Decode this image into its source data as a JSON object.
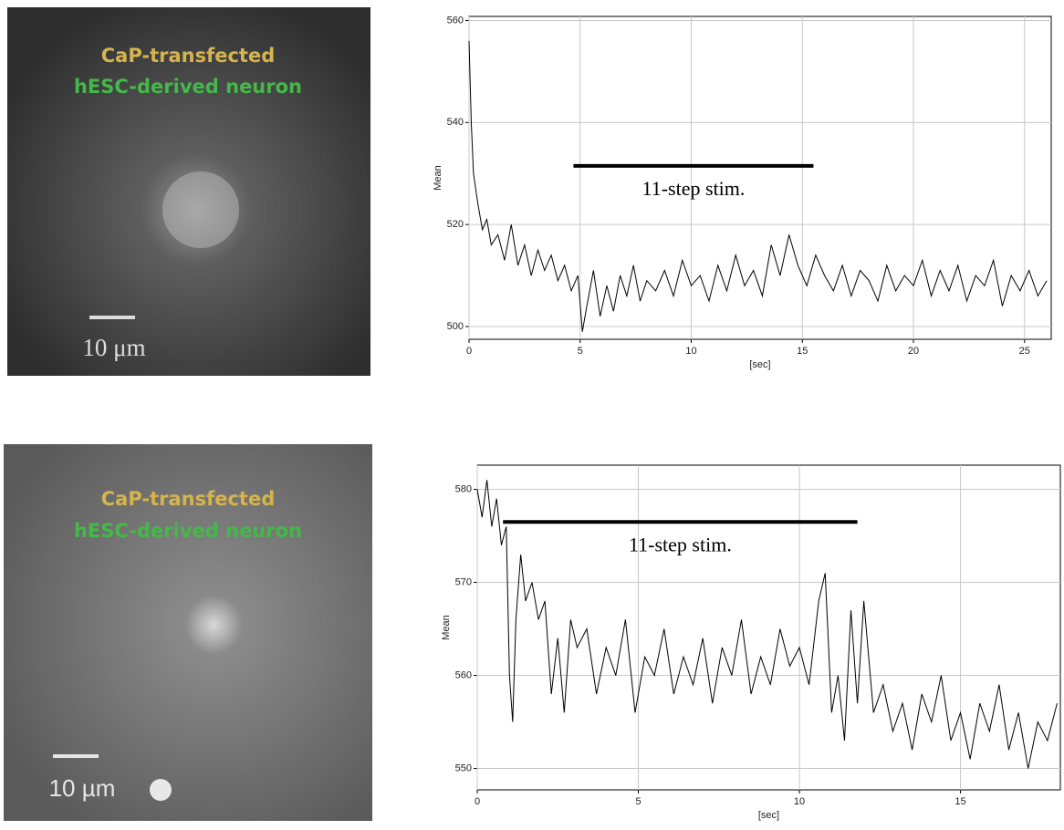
{
  "images": [
    {
      "title_lines": [
        "CaP-transfected",
        "hESC-derived neuron"
      ],
      "scale_bar": "10 μm"
    },
    {
      "title_lines": [
        "CaP-transfected",
        "hESC-derived neuron"
      ],
      "scale_bar": "10 µm"
    }
  ],
  "chart_data": [
    {
      "type": "line",
      "ylabel": "Mean",
      "xlabel": "[sec]",
      "x": [
        0,
        0.1,
        0.2,
        0.4,
        0.6,
        0.8,
        1,
        1.3,
        1.6,
        1.9,
        2.2,
        2.5,
        2.8,
        3.1,
        3.4,
        3.7,
        4,
        4.3,
        4.6,
        4.9,
        5.1,
        5.3,
        5.6,
        5.9,
        6.2,
        6.5,
        6.8,
        7.1,
        7.4,
        7.7,
        8,
        8.4,
        8.8,
        9.2,
        9.6,
        10,
        10.4,
        10.8,
        11.2,
        11.6,
        12,
        12.4,
        12.8,
        13.2,
        13.6,
        14,
        14.4,
        14.8,
        15.2,
        15.6,
        16,
        16.4,
        16.8,
        17.2,
        17.6,
        18,
        18.4,
        18.8,
        19.2,
        19.6,
        20,
        20.4,
        20.8,
        21.2,
        21.6,
        22,
        22.4,
        22.8,
        23.2,
        23.6,
        24,
        24.4,
        24.8,
        25.2,
        25.6,
        26
      ],
      "series": [
        {
          "color": "#000000",
          "values": [
            556,
            540,
            530,
            524,
            519,
            521,
            516,
            518,
            513,
            520,
            512,
            516,
            510,
            515,
            511,
            514,
            509,
            512,
            507,
            510,
            499,
            504,
            511,
            502,
            508,
            503,
            510,
            506,
            512,
            505,
            509,
            507,
            511,
            506,
            513,
            508,
            510,
            505,
            512,
            507,
            514,
            508,
            511,
            506,
            516,
            510,
            518,
            512,
            508,
            514,
            510,
            507,
            512,
            506,
            511,
            509,
            505,
            512,
            507,
            510,
            508,
            513,
            506,
            511,
            507,
            512,
            505,
            510,
            508,
            513,
            504,
            510,
            507,
            511,
            506,
            509
          ]
        }
      ],
      "xlim": [
        0,
        26.2
      ],
      "ylim": [
        497.5,
        560.8
      ],
      "xticks": [
        0,
        5,
        10,
        15,
        20,
        25
      ],
      "yticks": [
        500,
        520,
        540,
        560
      ],
      "grid": true,
      "annotation": {
        "text": "11-step stim.",
        "x": [
          4.7,
          15.5
        ],
        "y": 531.5
      }
    },
    {
      "type": "line",
      "ylabel": "Mean",
      "xlabel": "[sec]",
      "x": [
        0,
        0.15,
        0.3,
        0.45,
        0.6,
        0.75,
        0.9,
        1.0,
        1.1,
        1.2,
        1.35,
        1.5,
        1.7,
        1.9,
        2.1,
        2.3,
        2.5,
        2.7,
        2.9,
        3.1,
        3.4,
        3.7,
        4,
        4.3,
        4.6,
        4.9,
        5.2,
        5.5,
        5.8,
        6.1,
        6.4,
        6.7,
        7,
        7.3,
        7.6,
        7.9,
        8.2,
        8.5,
        8.8,
        9.1,
        9.4,
        9.7,
        10,
        10.3,
        10.6,
        10.8,
        11,
        11.2,
        11.4,
        11.6,
        11.8,
        12,
        12.3,
        12.6,
        12.9,
        13.2,
        13.5,
        13.8,
        14.1,
        14.4,
        14.7,
        15,
        15.3,
        15.6,
        15.9,
        16.2,
        16.5,
        16.8,
        17.1,
        17.4,
        17.7,
        18
      ],
      "series": [
        {
          "color": "#000000",
          "values": [
            580,
            577,
            581,
            576,
            579,
            574,
            576,
            560,
            555,
            566,
            573,
            568,
            570,
            566,
            568,
            558,
            564,
            556,
            566,
            563,
            565,
            558,
            563,
            560,
            566,
            556,
            562,
            560,
            565,
            558,
            562,
            559,
            564,
            557,
            563,
            560,
            566,
            558,
            562,
            559,
            565,
            561,
            563,
            559,
            568,
            571,
            556,
            560,
            553,
            567,
            557,
            568,
            556,
            559,
            554,
            557,
            552,
            558,
            555,
            560,
            553,
            556,
            551,
            557,
            554,
            559,
            552,
            556,
            550,
            555,
            553,
            557
          ]
        }
      ],
      "xlim": [
        0,
        18.1
      ],
      "ylim": [
        547.7,
        582.6
      ],
      "xticks": [
        0,
        5,
        10,
        15
      ],
      "yticks": [
        550,
        560,
        570,
        580
      ],
      "grid": true,
      "annotation": {
        "text": "11-step stim.",
        "x": [
          0.8,
          11.8
        ],
        "y": 576.5
      }
    }
  ]
}
